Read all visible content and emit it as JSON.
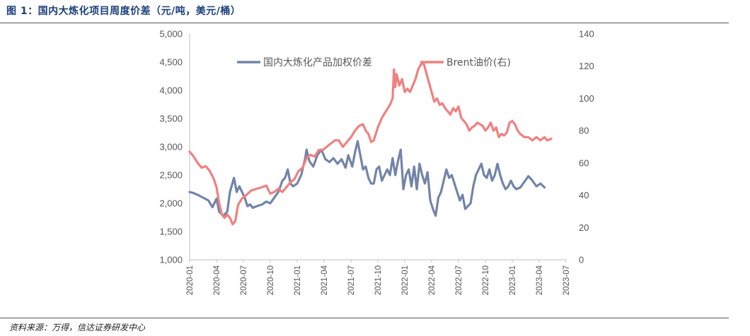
{
  "figure": {
    "title": "图 1：国内大炼化项目周度价差（元/吨，美元/桶）",
    "source": "资料来源：万得，信达证券研发中心"
  },
  "chart_data": {
    "type": "line",
    "x_categories": [
      "2020-01",
      "2020-04",
      "2020-07",
      "2020-10",
      "2021-01",
      "2021-04",
      "2021-07",
      "2021-10",
      "2022-01",
      "2022-04",
      "2022-07",
      "2022-10",
      "2023-01",
      "2023-04",
      "2023-07"
    ],
    "y_left": {
      "min": 1000,
      "max": 5000,
      "ticks": [
        "1,000",
        "1,500",
        "2,000",
        "2,500",
        "3,000",
        "3,500",
        "4,000",
        "4,500",
        "5,000"
      ]
    },
    "y_right": {
      "min": 0,
      "max": 140,
      "ticks": [
        "0",
        "20",
        "40",
        "60",
        "80",
        "100",
        "120",
        "140"
      ]
    },
    "legend": {
      "position": "top-center"
    },
    "series": [
      {
        "name": "国内大炼化产品加权价差",
        "axis": "left",
        "color": "#7384a8",
        "points": [
          [
            0,
            2200
          ],
          [
            0.15,
            2180
          ],
          [
            0.3,
            2150
          ],
          [
            0.5,
            2100
          ],
          [
            0.7,
            2050
          ],
          [
            0.85,
            1930
          ],
          [
            1.0,
            2080
          ],
          [
            1.1,
            1850
          ],
          [
            1.25,
            1780
          ],
          [
            1.4,
            1850
          ],
          [
            1.5,
            2200
          ],
          [
            1.65,
            2450
          ],
          [
            1.75,
            2200
          ],
          [
            1.85,
            2300
          ],
          [
            1.95,
            2200
          ],
          [
            2.05,
            2100
          ],
          [
            2.15,
            1950
          ],
          [
            2.25,
            1980
          ],
          [
            2.35,
            1920
          ],
          [
            2.5,
            1950
          ],
          [
            2.7,
            1980
          ],
          [
            2.85,
            2030
          ],
          [
            3.0,
            2000
          ],
          [
            3.15,
            2100
          ],
          [
            3.3,
            2200
          ],
          [
            3.45,
            2400
          ],
          [
            3.55,
            2450
          ],
          [
            3.65,
            2600
          ],
          [
            3.75,
            2350
          ],
          [
            3.85,
            2300
          ],
          [
            4.0,
            2350
          ],
          [
            4.15,
            2500
          ],
          [
            4.3,
            2800
          ],
          [
            4.35,
            2950
          ],
          [
            4.45,
            2750
          ],
          [
            4.6,
            2650
          ],
          [
            4.75,
            2850
          ],
          [
            4.9,
            2950
          ],
          [
            5.05,
            2780
          ],
          [
            5.2,
            2730
          ],
          [
            5.35,
            2800
          ],
          [
            5.5,
            2700
          ],
          [
            5.65,
            2780
          ],
          [
            5.8,
            2630
          ],
          [
            5.9,
            2850
          ],
          [
            6.05,
            2650
          ],
          [
            6.15,
            2900
          ],
          [
            6.25,
            3100
          ],
          [
            6.35,
            2850
          ],
          [
            6.45,
            2600
          ],
          [
            6.55,
            2650
          ],
          [
            6.65,
            2450
          ],
          [
            6.75,
            2350
          ],
          [
            6.85,
            2350
          ],
          [
            6.95,
            2600
          ],
          [
            7.05,
            2650
          ],
          [
            7.15,
            2400
          ],
          [
            7.25,
            2500
          ],
          [
            7.35,
            2600
          ],
          [
            7.45,
            2500
          ],
          [
            7.55,
            2800
          ],
          [
            7.65,
            2500
          ],
          [
            7.75,
            2750
          ],
          [
            7.85,
            2950
          ],
          [
            7.95,
            2250
          ],
          [
            8.05,
            2500
          ],
          [
            8.15,
            2600
          ],
          [
            8.25,
            2300
          ],
          [
            8.35,
            2650
          ],
          [
            8.45,
            2250
          ],
          [
            8.55,
            2700
          ],
          [
            8.65,
            2500
          ],
          [
            8.75,
            2350
          ],
          [
            8.85,
            2550
          ],
          [
            8.95,
            2050
          ],
          [
            9.05,
            1900
          ],
          [
            9.15,
            1780
          ],
          [
            9.25,
            2100
          ],
          [
            9.35,
            2200
          ],
          [
            9.45,
            2400
          ],
          [
            9.55,
            2600
          ],
          [
            9.65,
            2450
          ],
          [
            9.75,
            2500
          ],
          [
            9.85,
            2350
          ],
          [
            9.95,
            2200
          ],
          [
            10.05,
            2050
          ],
          [
            10.15,
            2150
          ],
          [
            10.25,
            1900
          ],
          [
            10.35,
            1950
          ],
          [
            10.45,
            2000
          ],
          [
            10.55,
            2300
          ],
          [
            10.65,
            2500
          ],
          [
            10.75,
            2600
          ],
          [
            10.85,
            2700
          ],
          [
            10.95,
            2500
          ],
          [
            11.05,
            2450
          ],
          [
            11.15,
            2600
          ],
          [
            11.25,
            2400
          ],
          [
            11.35,
            2500
          ],
          [
            11.45,
            2700
          ],
          [
            11.55,
            2500
          ],
          [
            11.65,
            2350
          ],
          [
            11.75,
            2250
          ],
          [
            11.85,
            2300
          ],
          [
            11.95,
            2400
          ],
          [
            12.05,
            2300
          ],
          [
            12.15,
            2250
          ],
          [
            12.3,
            2280
          ],
          [
            12.45,
            2380
          ],
          [
            12.6,
            2480
          ],
          [
            12.75,
            2400
          ],
          [
            12.9,
            2300
          ],
          [
            13.05,
            2350
          ],
          [
            13.2,
            2280
          ]
        ]
      },
      {
        "name": "Brent油价(右)",
        "axis": "right",
        "color": "#f08080",
        "points": [
          [
            0,
            67
          ],
          [
            0.15,
            64
          ],
          [
            0.3,
            60
          ],
          [
            0.45,
            57
          ],
          [
            0.6,
            58
          ],
          [
            0.75,
            55
          ],
          [
            0.9,
            50
          ],
          [
            1.0,
            45
          ],
          [
            1.1,
            35
          ],
          [
            1.2,
            28
          ],
          [
            1.3,
            26
          ],
          [
            1.4,
            28
          ],
          [
            1.5,
            26
          ],
          [
            1.6,
            22
          ],
          [
            1.7,
            24
          ],
          [
            1.8,
            34
          ],
          [
            1.95,
            38
          ],
          [
            2.1,
            40
          ],
          [
            2.3,
            43
          ],
          [
            2.5,
            44
          ],
          [
            2.7,
            45
          ],
          [
            2.85,
            46
          ],
          [
            3.0,
            41
          ],
          [
            3.15,
            42
          ],
          [
            3.3,
            44
          ],
          [
            3.45,
            42
          ],
          [
            3.6,
            45
          ],
          [
            3.75,
            48
          ],
          [
            3.9,
            50
          ],
          [
            4.05,
            55
          ],
          [
            4.2,
            57
          ],
          [
            4.35,
            63
          ],
          [
            4.5,
            65
          ],
          [
            4.65,
            64
          ],
          [
            4.8,
            68
          ],
          [
            4.95,
            68
          ],
          [
            5.1,
            70
          ],
          [
            5.25,
            72
          ],
          [
            5.4,
            74
          ],
          [
            5.55,
            74
          ],
          [
            5.7,
            70
          ],
          [
            5.85,
            73
          ],
          [
            6.0,
            76
          ],
          [
            6.15,
            80
          ],
          [
            6.3,
            83
          ],
          [
            6.45,
            84
          ],
          [
            6.55,
            80
          ],
          [
            6.65,
            78
          ],
          [
            6.75,
            73
          ],
          [
            6.85,
            74
          ],
          [
            7.0,
            82
          ],
          [
            7.15,
            88
          ],
          [
            7.3,
            92
          ],
          [
            7.45,
            96
          ],
          [
            7.55,
            100
          ],
          [
            7.6,
            118
          ],
          [
            7.65,
            107
          ],
          [
            7.7,
            115
          ],
          [
            7.8,
            108
          ],
          [
            7.9,
            112
          ],
          [
            8.0,
            104
          ],
          [
            8.1,
            106
          ],
          [
            8.2,
            104
          ],
          [
            8.3,
            108
          ],
          [
            8.4,
            112
          ],
          [
            8.5,
            118
          ],
          [
            8.6,
            121
          ],
          [
            8.7,
            122
          ],
          [
            8.8,
            116
          ],
          [
            8.9,
            110
          ],
          [
            9.0,
            104
          ],
          [
            9.1,
            98
          ],
          [
            9.2,
            100
          ],
          [
            9.3,
            96
          ],
          [
            9.4,
            97
          ],
          [
            9.5,
            94
          ],
          [
            9.6,
            92
          ],
          [
            9.7,
            90
          ],
          [
            9.8,
            94
          ],
          [
            9.9,
            92
          ],
          [
            10.0,
            95
          ],
          [
            10.1,
            88
          ],
          [
            10.2,
            86
          ],
          [
            10.3,
            84
          ],
          [
            10.4,
            80
          ],
          [
            10.5,
            82
          ],
          [
            10.6,
            83
          ],
          [
            10.7,
            85
          ],
          [
            10.8,
            84
          ],
          [
            10.9,
            83
          ],
          [
            11.0,
            80
          ],
          [
            11.1,
            82
          ],
          [
            11.2,
            85
          ],
          [
            11.3,
            80
          ],
          [
            11.4,
            82
          ],
          [
            11.5,
            76
          ],
          [
            11.6,
            78
          ],
          [
            11.7,
            77
          ],
          [
            11.8,
            79
          ],
          [
            11.9,
            85
          ],
          [
            12.0,
            86
          ],
          [
            12.1,
            84
          ],
          [
            12.2,
            80
          ],
          [
            12.3,
            78
          ],
          [
            12.45,
            76
          ],
          [
            12.6,
            76
          ],
          [
            12.75,
            74
          ],
          [
            12.9,
            76
          ],
          [
            13.05,
            74
          ],
          [
            13.2,
            76
          ],
          [
            13.3,
            74
          ],
          [
            13.45,
            75
          ]
        ]
      }
    ]
  }
}
